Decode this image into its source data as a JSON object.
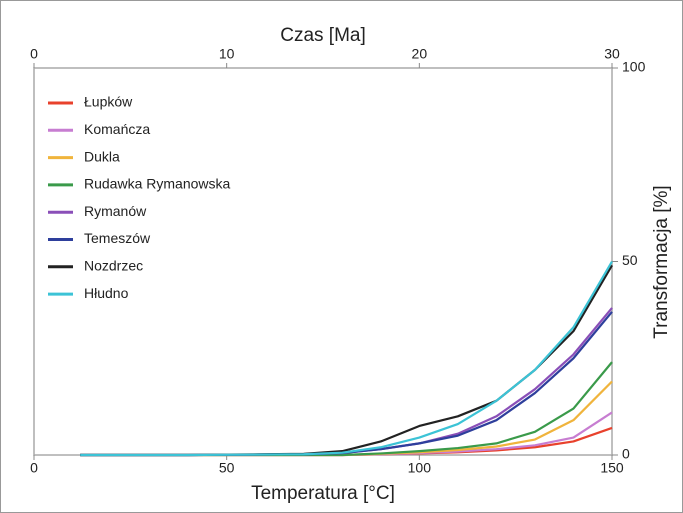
{
  "chart_data": {
    "type": "line",
    "xlabel": "Temperatura [°C]",
    "x2label": "Czas [Ma]",
    "ylabel": "Transformacja [%]",
    "x": [
      12,
      40,
      70,
      80,
      90,
      100,
      110,
      120,
      130,
      140,
      150
    ],
    "xlim": [
      0,
      150
    ],
    "xticks": [
      0,
      50,
      100,
      150
    ],
    "x2lim": [
      0,
      30
    ],
    "x2ticks": [
      0,
      10,
      20,
      30
    ],
    "ylim": [
      0,
      100
    ],
    "yticks": [
      0,
      50,
      100
    ],
    "legend": "upper left",
    "series": [
      {
        "name": "Łupków",
        "color": "#e8412c",
        "values": [
          0,
          0,
          0,
          0,
          0.2,
          0.4,
          0.7,
          1.2,
          2,
          3.5,
          7
        ]
      },
      {
        "name": "Komańcza",
        "color": "#c77dd1",
        "values": [
          0,
          0,
          0,
          0,
          0.2,
          0.5,
          0.9,
          1.5,
          2.5,
          4.5,
          11
        ]
      },
      {
        "name": "Dukla",
        "color": "#f0b43c",
        "values": [
          0,
          0,
          0,
          0,
          0.3,
          0.7,
          1.3,
          2.2,
          4,
          9,
          19
        ]
      },
      {
        "name": "Rudawka Rymanowska",
        "color": "#3a9a4a",
        "values": [
          0,
          0,
          0,
          0,
          0.4,
          1,
          1.8,
          3,
          6,
          12,
          24
        ]
      },
      {
        "name": "Rymanów",
        "color": "#8a4fb8",
        "values": [
          0,
          0,
          0.2,
          0.5,
          1.5,
          3,
          5.5,
          10,
          17,
          26,
          38
        ]
      },
      {
        "name": "Temeszów",
        "color": "#2e3f9c",
        "values": [
          0,
          0,
          0.2,
          0.5,
          1.5,
          3,
          5,
          9,
          16,
          25,
          37
        ]
      },
      {
        "name": "Nozdrzec",
        "color": "#222222",
        "values": [
          0,
          0,
          0.3,
          1,
          3.5,
          7.5,
          10,
          14,
          22,
          32,
          49
        ]
      },
      {
        "name": "Hłudno",
        "color": "#3cc3d6",
        "values": [
          0,
          0,
          0.2,
          0.6,
          2,
          4.5,
          8,
          14,
          22,
          33,
          50
        ]
      }
    ]
  }
}
